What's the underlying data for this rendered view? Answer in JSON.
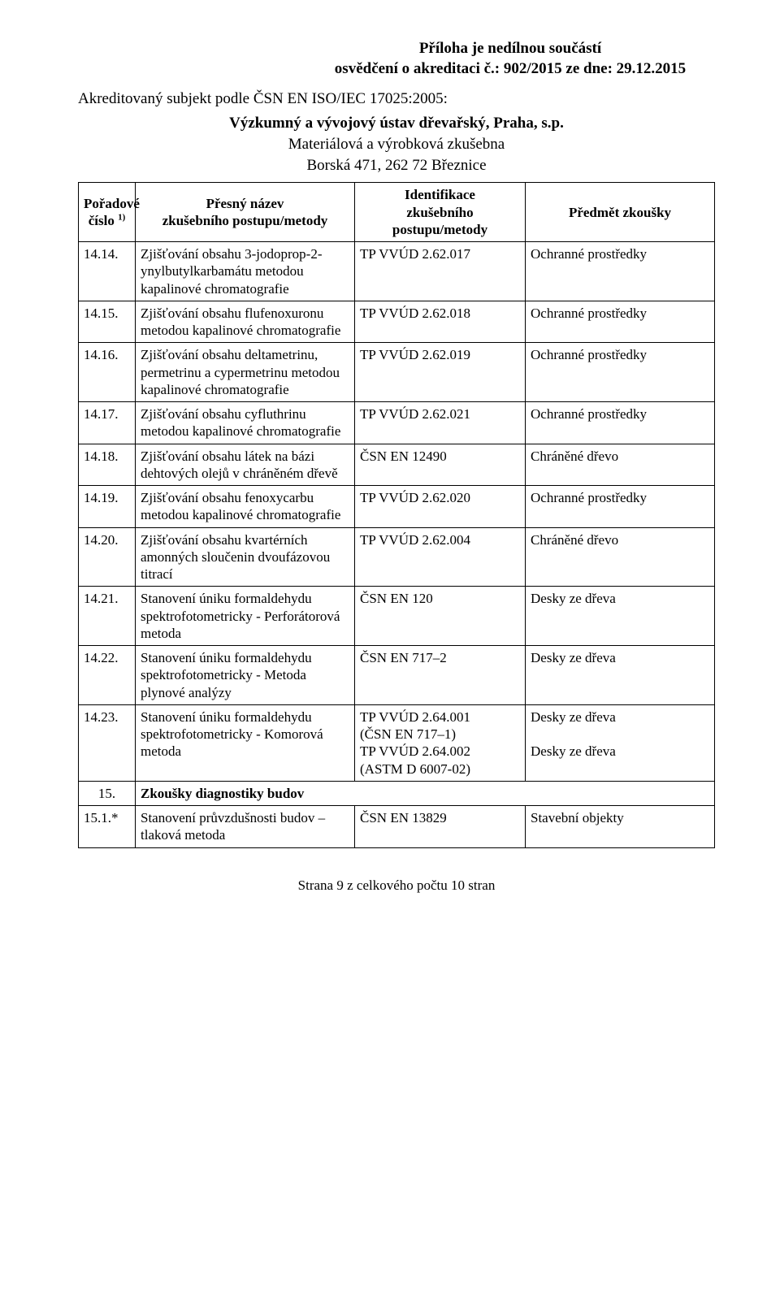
{
  "header": {
    "attachment_line1": "Příloha je nedílnou součástí",
    "attachment_line2": "osvědčení o akreditaci č.: 902/2015 ze dne: 29.12.2015",
    "accredited_line": "Akreditovaný subjekt podle ČSN EN ISO/IEC 17025:2005:",
    "org_line": "Výzkumný a vývojový ústav dřevařský, Praha, s.p.",
    "org_sub1": "Materiálová a výrobková zkušebna",
    "org_sub2": "Borská 471, 262 72 Březnice"
  },
  "columns": {
    "c1a": "Pořadové",
    "c1b": "číslo",
    "c1sup": "1)",
    "c2a": "Přesný název",
    "c2b": "zkušebního postupu/metody",
    "c3a": "Identifikace",
    "c3b": "zkušebního postupu/metody",
    "c4": "Předmět zkoušky"
  },
  "rows": [
    {
      "num": "14.14.",
      "name": "Zjišťování obsahu 3-jodoprop-2-ynylbutylkarbamátu metodou kapalinové chromatografie",
      "id": "TP VVÚD 2.62.017",
      "subj": "Ochranné prostředky"
    },
    {
      "num": "14.15.",
      "name": "Zjišťování obsahu flufenoxuronu metodou kapalinové chromatografie",
      "id": "TP VVÚD 2.62.018",
      "subj": "Ochranné prostředky"
    },
    {
      "num": "14.16.",
      "name": "Zjišťování obsahu deltametrinu, permetrinu a cypermetrinu metodou kapalinové chromatografie",
      "id": "TP VVÚD 2.62.019",
      "subj": "Ochranné prostředky"
    },
    {
      "num": "14.17.",
      "name": "Zjišťování obsahu cyfluthrinu metodou kapalinové chromatografie",
      "id": "TP VVÚD 2.62.021",
      "subj": "Ochranné prostředky"
    },
    {
      "num": "14.18.",
      "name": "Zjišťování obsahu látek na bázi dehtových olejů v chráněném dřevě",
      "id": "ČSN EN 12490",
      "subj": "Chráněné dřevo"
    },
    {
      "num": "14.19.",
      "name": "Zjišťování obsahu fenoxycarbu metodou kapalinové chromatografie",
      "id": "TP VVÚD 2.62.020",
      "subj": "Ochranné prostředky"
    },
    {
      "num": "14.20.",
      "name": "Zjišťování obsahu kvartérních amonných sloučenin dvoufázovou titrací",
      "id": "TP VVÚD 2.62.004",
      "subj": "Chráněné dřevo"
    },
    {
      "num": "14.21.",
      "name": "Stanovení úniku formaldehydu spektrofotometricky - Perforátorová metoda",
      "id": "ČSN EN 120",
      "subj": "Desky ze dřeva"
    },
    {
      "num": "14.22.",
      "name": "Stanovení úniku formaldehydu spektrofotometricky - Metoda plynové analýzy",
      "id": "ČSN EN 717–2",
      "subj": "Desky ze dřeva"
    },
    {
      "num": "14.23.",
      "name": "Stanovení úniku formaldehydu spektrofotometricky - Komorová metoda",
      "id": "TP VVÚD 2.64.001\n(ČSN EN 717–1)\nTP VVÚD  2.64.002\n(ASTM D 6007-02)",
      "subj": "Desky ze dřeva\n\nDesky ze dřeva"
    }
  ],
  "section": {
    "num": "15.",
    "title": "Zkoušky diagnostiky budov"
  },
  "rows2": [
    {
      "num": "15.1.*",
      "name": "Stanovení průvzdušnosti budov – tlaková metoda",
      "id": "ČSN EN 13829",
      "subj": "Stavební objekty"
    }
  ],
  "footer": "Strana 9 z celkového počtu 10 stran"
}
